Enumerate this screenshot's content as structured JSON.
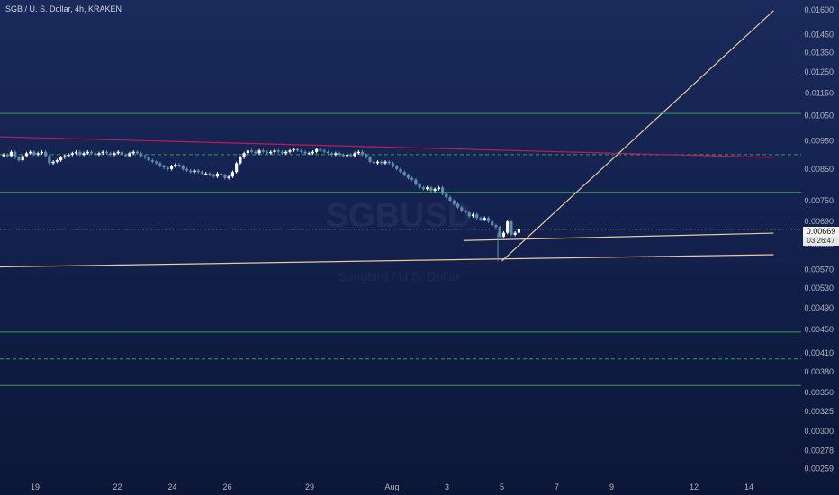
{
  "title": "SGB / U. S. Dollar, 4h, KRAKEN",
  "watermark": {
    "main": "SGBUSD",
    "sub": "Songbird / U.S. Dollar"
  },
  "price_label": "0.00669",
  "countdown": "03:26:47",
  "colors": {
    "up": "#ffffff",
    "down": "#5b8fb0",
    "hline": "#2fa14a",
    "trend_red": "#c2185b",
    "trend_tan": "#e8c9a0",
    "current_line": "#9aa4c0",
    "axis_text": "#b2b5be"
  },
  "chart_data": {
    "type": "candlestick",
    "y_axis": {
      "scale": "log",
      "ticks": [
        "0.01600",
        "0.01450",
        "0.01350",
        "0.01250",
        "0.01150",
        "0.01050",
        "0.00950",
        "0.00850",
        "0.00750",
        "0.00690",
        "0.00630",
        "0.00570",
        "0.00530",
        "0.00490",
        "0.00450",
        "0.00410",
        "0.00380",
        "0.00350",
        "0.00325",
        "0.00300",
        "0.00278",
        "0.00259"
      ],
      "range": [
        0.00252,
        0.0164
      ]
    },
    "x_axis": {
      "ticks": [
        "19",
        "22",
        "24",
        "26",
        "29",
        "Aug",
        "3",
        "5",
        "7",
        "9",
        "12",
        "14"
      ]
    },
    "horizontal_lines": [
      {
        "price": 0.0106,
        "style": "solid"
      },
      {
        "price": 0.009,
        "style": "dashed"
      },
      {
        "price": 0.00775,
        "style": "solid"
      },
      {
        "price": 0.00669,
        "style": "dotted",
        "role": "current"
      },
      {
        "price": 0.00445,
        "style": "solid"
      },
      {
        "price": 0.004,
        "style": "dashed"
      },
      {
        "price": 0.0036,
        "style": "solid"
      }
    ],
    "trend_lines": [
      {
        "color": "trend_red",
        "from": {
          "day": 16.3,
          "price": 0.0097
        },
        "to": {
          "day": 14.9,
          "month": "Aug",
          "price": 0.0089
        }
      },
      {
        "color": "trend_tan",
        "from": {
          "day": 16.3,
          "price": 0.00575
        },
        "to": {
          "day": 14.9,
          "month": "Aug",
          "price": 0.00605
        }
      },
      {
        "color": "trend_tan",
        "from": {
          "day": 3.6,
          "month": "Aug",
          "price": 0.0064
        },
        "to": {
          "day": 14.9,
          "month": "Aug",
          "price": 0.00659
        }
      },
      {
        "color": "trend_tan",
        "from": {
          "day": 5.0,
          "month": "Aug",
          "price": 0.0059
        },
        "to": {
          "day": 14.9,
          "month": "Aug",
          "price": 0.01595
        }
      }
    ],
    "candles_close": [
      0.009,
      0.00895,
      0.0091,
      0.0089,
      0.0088,
      0.00895,
      0.00905,
      0.0091,
      0.009,
      0.00905,
      0.0091,
      0.00895,
      0.0087,
      0.00875,
      0.0088,
      0.0089,
      0.00895,
      0.009,
      0.00905,
      0.0091,
      0.009,
      0.00905,
      0.0091,
      0.00905,
      0.009,
      0.00905,
      0.0091,
      0.00905,
      0.009,
      0.00905,
      0.0091,
      0.009,
      0.00895,
      0.00905,
      0.0091,
      0.00905,
      0.00895,
      0.0089,
      0.0088,
      0.00875,
      0.0087,
      0.0086,
      0.00855,
      0.0085,
      0.0086,
      0.00865,
      0.0086,
      0.0085,
      0.00845,
      0.0084,
      0.00845,
      0.0084,
      0.00835,
      0.00835,
      0.0083,
      0.00825,
      0.00835,
      0.0083,
      0.0082,
      0.00825,
      0.0084,
      0.0087,
      0.0089,
      0.00905,
      0.00915,
      0.0091,
      0.00905,
      0.00915,
      0.0091,
      0.00905,
      0.0091,
      0.00915,
      0.0091,
      0.00905,
      0.0091,
      0.00915,
      0.0092,
      0.00915,
      0.0091,
      0.00905,
      0.00905,
      0.0091,
      0.0092,
      0.00915,
      0.0091,
      0.00905,
      0.009,
      0.00905,
      0.009,
      0.00895,
      0.009,
      0.00895,
      0.00905,
      0.0091,
      0.009,
      0.0089,
      0.00875,
      0.0087,
      0.00875,
      0.0087,
      0.00875,
      0.0087,
      0.0086,
      0.0085,
      0.0084,
      0.0083,
      0.0082,
      0.00815,
      0.008,
      0.0079,
      0.00785,
      0.0079,
      0.0078,
      0.00785,
      0.0079,
      0.0077,
      0.0076,
      0.0075,
      0.0074,
      0.0073,
      0.0072,
      0.00715,
      0.00705,
      0.0071,
      0.007,
      0.00695,
      0.007,
      0.0069,
      0.0068,
      0.00675,
      0.0065,
      0.0066,
      0.0069,
      0.00655,
      0.0066,
      0.00669
    ]
  }
}
